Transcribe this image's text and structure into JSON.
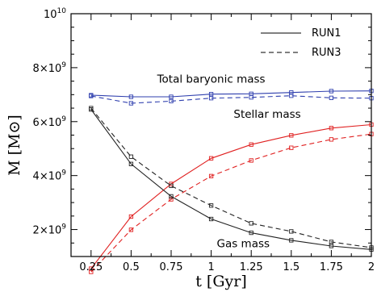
{
  "chart_data": {
    "type": "line",
    "xlabel": "t  [Gyr]",
    "ylabel": "M  [M⊙]",
    "xlim": [
      0.125,
      2.0
    ],
    "ylim": [
      1000000000,
      10000000000
    ],
    "x_ticks": [
      0.25,
      0.5,
      0.75,
      1,
      1.25,
      1.5,
      1.75,
      2
    ],
    "x_tick_labels": [
      "0.25",
      "0.5",
      "0.75",
      "1",
      "1.25",
      "1.5",
      "1.75",
      "2"
    ],
    "y_ticks": [
      {
        "value": 2000000000,
        "mantissa": "2",
        "base": "×10",
        "exp": "9"
      },
      {
        "value": 4000000000,
        "mantissa": "4",
        "base": "×10",
        "exp": "9"
      },
      {
        "value": 6000000000,
        "mantissa": "6",
        "base": "×10",
        "exp": "9"
      },
      {
        "value": 8000000000,
        "mantissa": "8",
        "base": "×10",
        "exp": "9"
      },
      {
        "value": 10000000000,
        "mantissa": "",
        "base": "10",
        "exp": "10"
      }
    ],
    "legend": {
      "placement": "top-right",
      "entries": [
        {
          "label": "RUN1",
          "style": "solid"
        },
        {
          "label": "RUN3",
          "style": "dashed"
        }
      ]
    },
    "annotations": [
      {
        "text": "Total baryonic mass",
        "x": 1.0,
        "y": 7450000000
      },
      {
        "text": "Stellar mass",
        "x": 1.35,
        "y": 6150000000
      },
      {
        "text": "Gas mass",
        "x": 1.2,
        "y": 1350000000
      }
    ],
    "x": [
      0.25,
      0.5,
      0.75,
      1.0,
      1.25,
      1.5,
      1.75,
      2.0
    ],
    "series": [
      {
        "group": "Total baryonic mass",
        "run": "RUN1",
        "style": "solid",
        "color": "#2f3fae",
        "values": [
          6980000000,
          6920000000,
          6920000000,
          7020000000,
          7030000000,
          7080000000,
          7130000000,
          7140000000
        ]
      },
      {
        "group": "Total baryonic mass",
        "run": "RUN3",
        "style": "dashed",
        "color": "#2f3fae",
        "values": [
          6950000000,
          6680000000,
          6760000000,
          6870000000,
          6900000000,
          6960000000,
          6880000000,
          6870000000
        ]
      },
      {
        "group": "Stellar mass",
        "run": "RUN1",
        "style": "solid",
        "color": "#e02020",
        "values": [
          550000000,
          2480000000,
          3690000000,
          4640000000,
          5150000000,
          5490000000,
          5760000000,
          5890000000
        ]
      },
      {
        "group": "Stellar mass",
        "run": "RUN3",
        "style": "dashed",
        "color": "#e02020",
        "values": [
          430000000,
          1990000000,
          3120000000,
          3980000000,
          4560000000,
          5030000000,
          5340000000,
          5540000000
        ]
      },
      {
        "group": "Gas mass",
        "run": "RUN1",
        "style": "solid",
        "color": "#222222",
        "values": [
          6450000000,
          4430000000,
          3230000000,
          2390000000,
          1880000000,
          1600000000,
          1390000000,
          1260000000
        ]
      },
      {
        "group": "Gas mass",
        "run": "RUN3",
        "style": "dashed",
        "color": "#222222",
        "values": [
          6500000000,
          4700000000,
          3620000000,
          2890000000,
          2230000000,
          1930000000,
          1540000000,
          1330000000
        ]
      }
    ],
    "grid": false
  }
}
